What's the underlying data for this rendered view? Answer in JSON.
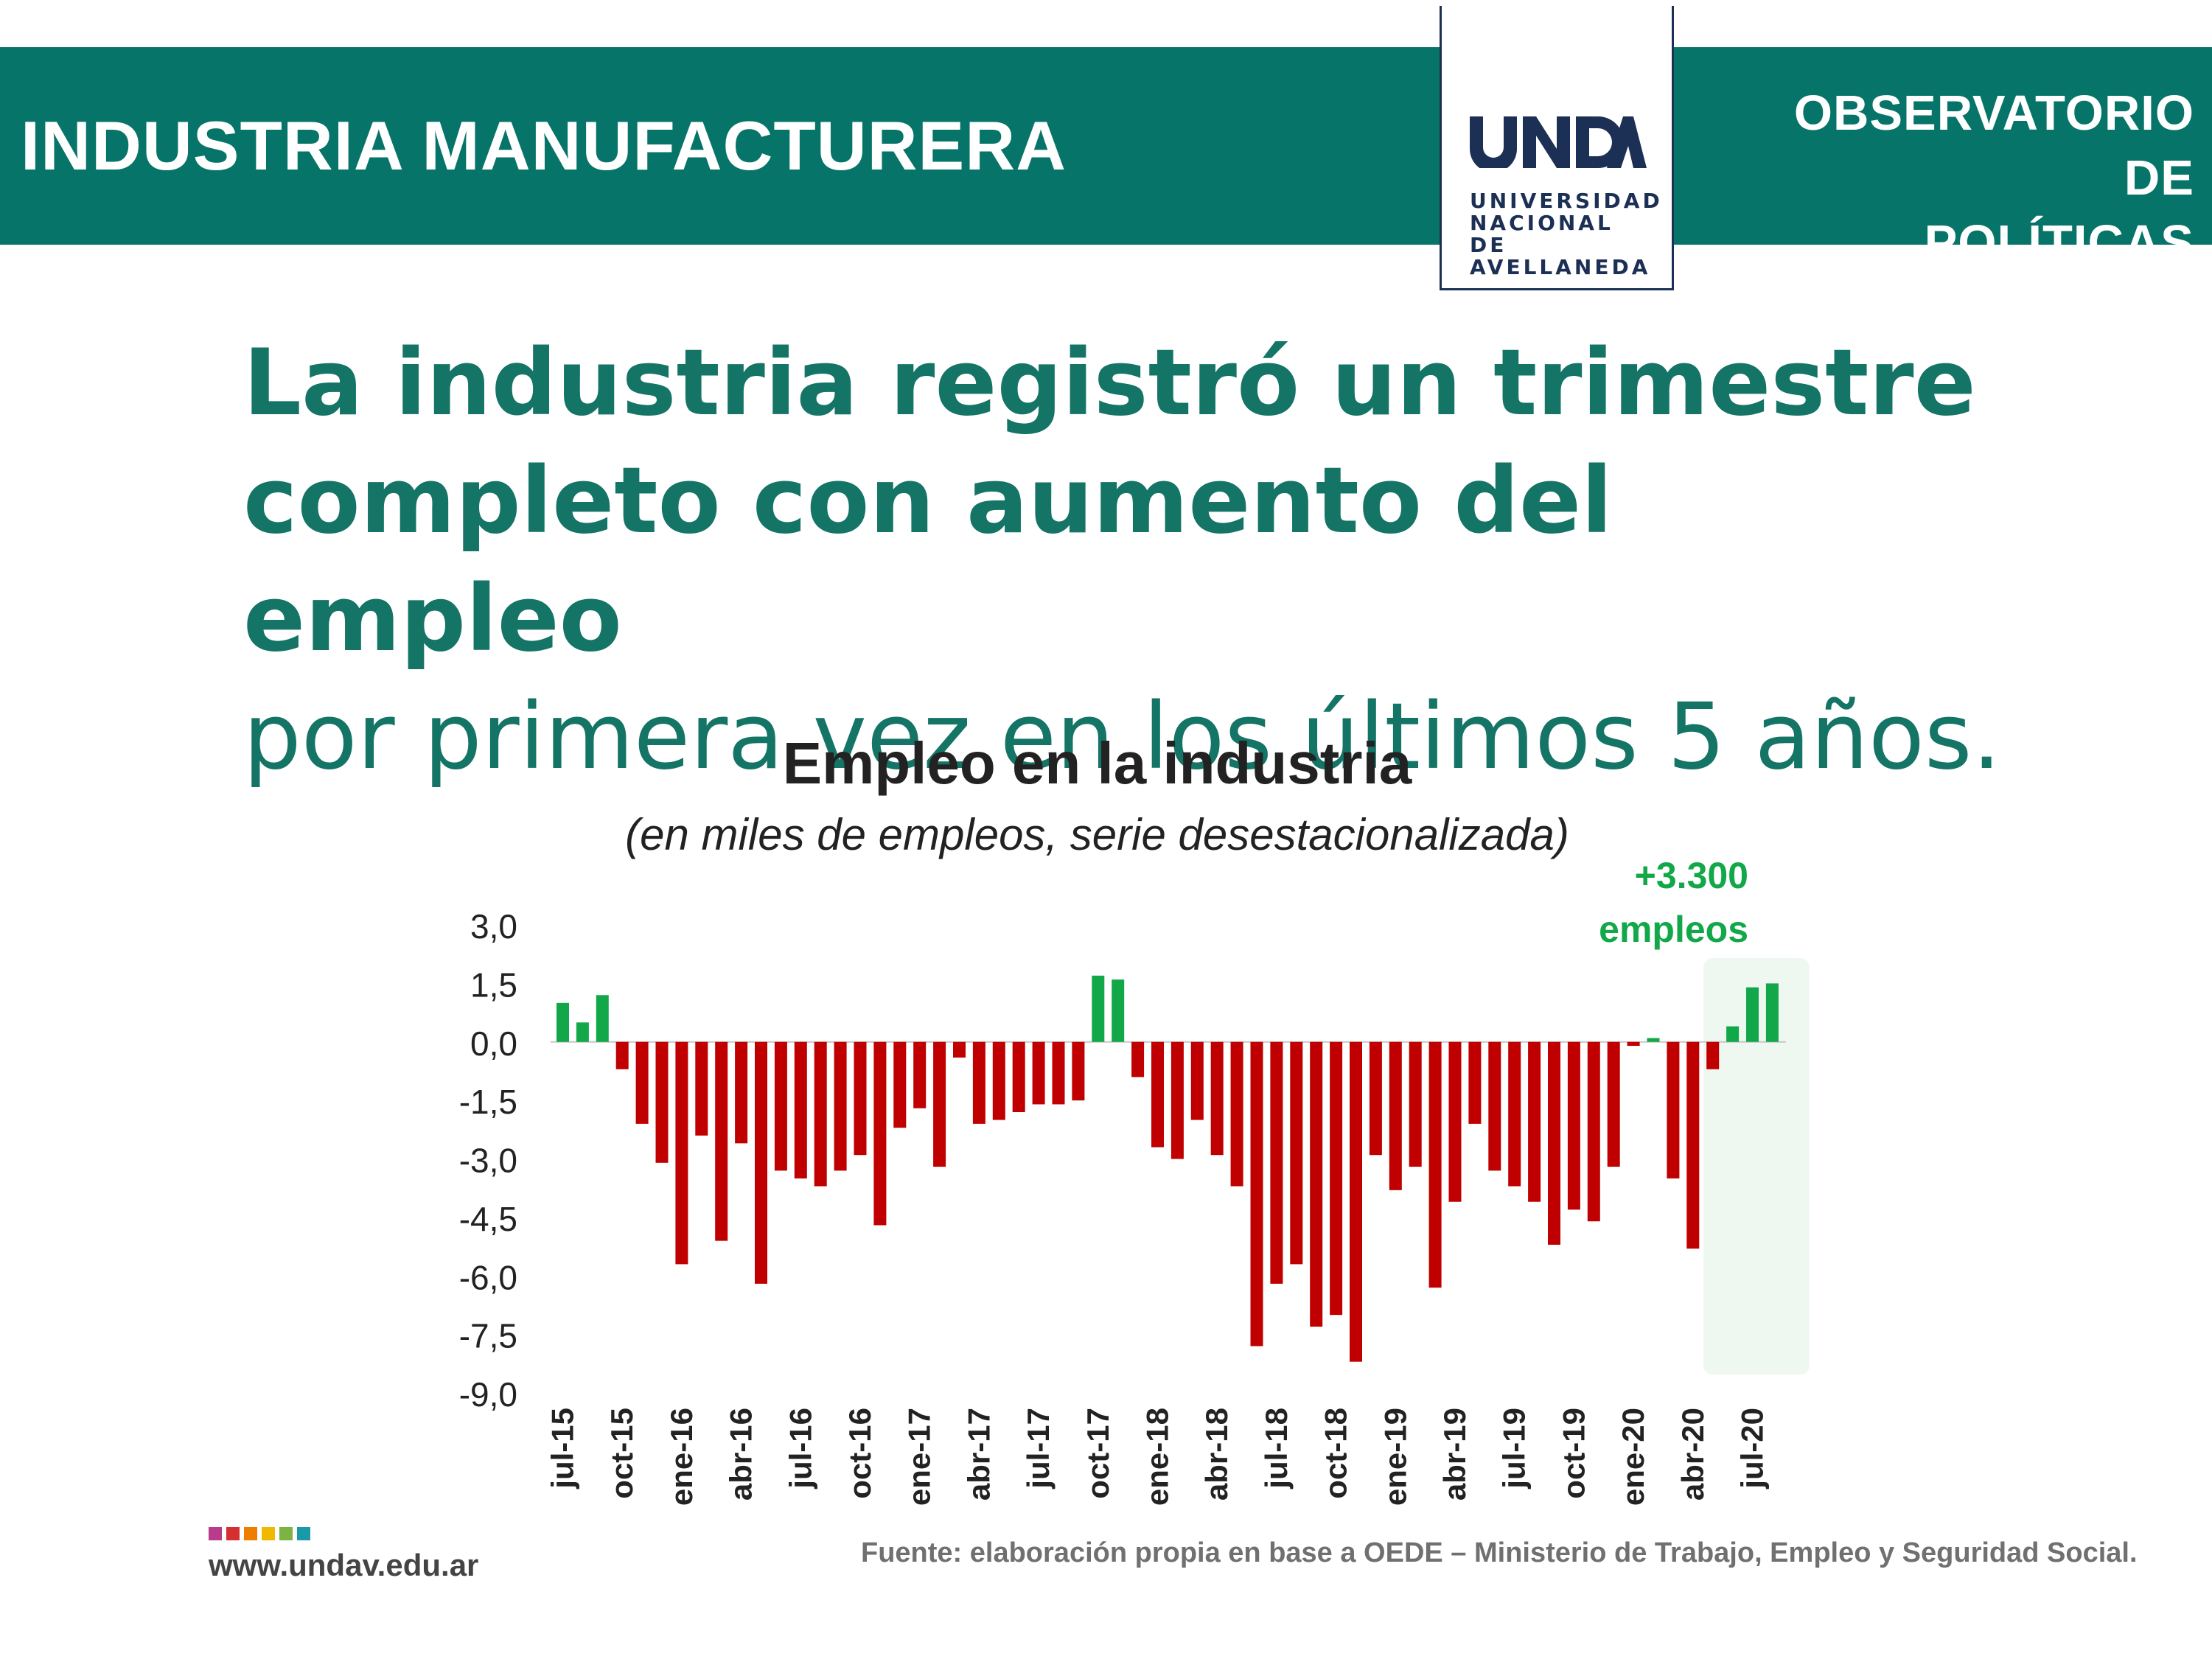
{
  "header": {
    "section_title": "INDUSTRIA MANUFACTURERA",
    "observatory_line1": "OBSERVATORIO DE",
    "observatory_line2": "POLÍTICAS PÚBLICAS",
    "logo_wordmark": "UNDAV",
    "logo_line1": "UNIVERSIDAD",
    "logo_line2": "NACIONAL DE",
    "logo_line3": "AVELLANEDA"
  },
  "headline": {
    "line1": "La industria registró un trimestre",
    "line2": "completo con aumento del empleo",
    "line3": "por primera vez en los últimos 5 años."
  },
  "colors": {
    "banner": "#067468",
    "headline": "#147466",
    "positive": "#12a84a",
    "negative": "#c00000",
    "highlight_bg": "#eef7f0",
    "logo_navy": "#1c2f55"
  },
  "chart_data": {
    "type": "bar",
    "title": "Empleo en la industria",
    "subtitle": "(en miles de empleos, serie desestacionalizada)",
    "ylim": [
      -9,
      3
    ],
    "yticks": [
      "3,0",
      "1,5",
      "0,0",
      "-1,5",
      "-3,0",
      "-4,5",
      "-6,0",
      "-7,5",
      "-9,0"
    ],
    "ytick_values": [
      3,
      1.5,
      0,
      -1.5,
      -3,
      -4.5,
      -6,
      -7.5,
      -9
    ],
    "x_tick_labels": [
      "jul-15",
      "oct-15",
      "ene-16",
      "abr-16",
      "jul-16",
      "oct-16",
      "ene-17",
      "abr-17",
      "jul-17",
      "oct-17",
      "ene-18",
      "abr-18",
      "jul-18",
      "oct-18",
      "ene-19",
      "abr-19",
      "jul-19",
      "oct-19",
      "ene-20",
      "abr-20",
      "jul-20"
    ],
    "x_tick_every": 3,
    "values": [
      1.0,
      0.5,
      1.2,
      -0.7,
      -2.1,
      -3.1,
      -5.7,
      -2.4,
      -5.1,
      -2.6,
      -6.2,
      -3.3,
      -3.5,
      -3.7,
      -3.3,
      -2.9,
      -4.7,
      -2.2,
      -1.7,
      -3.2,
      -0.4,
      -2.1,
      -2.0,
      -1.8,
      -1.6,
      -1.6,
      -1.5,
      1.7,
      1.6,
      -0.9,
      -2.7,
      -3.0,
      -2.0,
      -2.9,
      -3.7,
      -7.8,
      -6.2,
      -5.7,
      -7.3,
      -7.0,
      -8.2,
      -2.9,
      -3.8,
      -3.2,
      -6.3,
      -4.1,
      -2.1,
      -3.3,
      -3.7,
      -4.1,
      -5.2,
      -4.3,
      -4.6,
      -3.2,
      -0.1,
      0.1,
      -3.5,
      -5.3,
      -0.7,
      0.4,
      1.4,
      1.5
    ],
    "highlight_from_index": 59,
    "annotation_line1": "+3.300",
    "annotation_line2": "empleos"
  },
  "footer": {
    "url": "www.undav.edu.ar",
    "source": "Fuente: elaboración propia en base a OEDE – Ministerio de Trabajo, Empleo y Seguridad Social.",
    "dot_colors": [
      "#b83b8c",
      "#d62f2f",
      "#ef7d00",
      "#f2b800",
      "#7cb342",
      "#1a9aa8"
    ]
  }
}
